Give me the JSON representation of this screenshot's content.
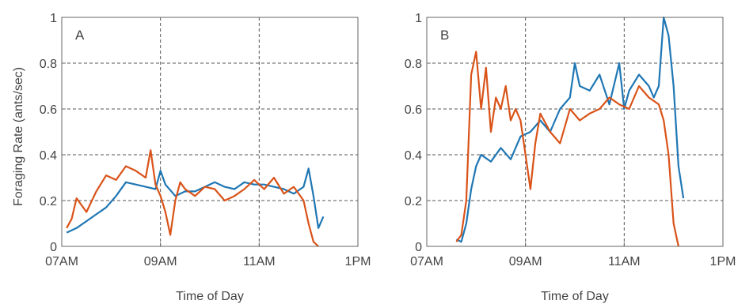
{
  "figure": {
    "ylabel": "Foraging Rate (ants/sec)"
  },
  "chart_data": [
    {
      "type": "line",
      "panel_label": "A",
      "xlabel": "Time of Day",
      "x_ticks": [
        "07AM",
        "09AM",
        "11AM",
        "1PM"
      ],
      "x_tick_values": [
        7,
        9,
        11,
        13
      ],
      "xlim": [
        7,
        13
      ],
      "y_ticks": [
        "0",
        "0.2",
        "0.4",
        "0.6",
        "0.8",
        "1"
      ],
      "y_tick_values": [
        0,
        0.2,
        0.4,
        0.6,
        0.8,
        1
      ],
      "ylim": [
        0,
        1
      ],
      "grid": true,
      "series": [
        {
          "color": "#1f77b4",
          "x": [
            7.1,
            7.3,
            7.5,
            7.7,
            7.9,
            8.1,
            8.3,
            8.5,
            8.7,
            8.9,
            9.0,
            9.1,
            9.3,
            9.5,
            9.7,
            9.9,
            10.1,
            10.3,
            10.5,
            10.7,
            10.9,
            11.1,
            11.3,
            11.5,
            11.7,
            11.9,
            12.0,
            12.1,
            12.2,
            12.3
          ],
          "values": [
            0.06,
            0.08,
            0.11,
            0.14,
            0.17,
            0.22,
            0.28,
            0.27,
            0.26,
            0.25,
            0.33,
            0.27,
            0.22,
            0.24,
            0.24,
            0.26,
            0.28,
            0.26,
            0.25,
            0.28,
            0.27,
            0.27,
            0.26,
            0.25,
            0.23,
            0.26,
            0.34,
            0.22,
            0.08,
            0.13
          ]
        },
        {
          "color": "#d95319",
          "x": [
            7.1,
            7.2,
            7.3,
            7.5,
            7.7,
            7.9,
            8.1,
            8.3,
            8.5,
            8.7,
            8.8,
            8.9,
            9.0,
            9.1,
            9.2,
            9.3,
            9.4,
            9.5,
            9.7,
            9.9,
            10.1,
            10.3,
            10.5,
            10.7,
            10.9,
            11.1,
            11.3,
            11.5,
            11.7,
            11.9,
            12.0,
            12.1,
            12.2
          ],
          "values": [
            0.08,
            0.12,
            0.21,
            0.15,
            0.24,
            0.31,
            0.29,
            0.35,
            0.33,
            0.3,
            0.42,
            0.27,
            0.22,
            0.15,
            0.05,
            0.2,
            0.28,
            0.25,
            0.22,
            0.26,
            0.25,
            0.2,
            0.22,
            0.25,
            0.29,
            0.25,
            0.3,
            0.23,
            0.26,
            0.2,
            0.1,
            0.02,
            0.0
          ]
        }
      ]
    },
    {
      "type": "line",
      "panel_label": "B",
      "xlabel": "Time of Day",
      "x_ticks": [
        "07AM",
        "09AM",
        "11AM",
        "1PM"
      ],
      "x_tick_values": [
        7,
        9,
        11,
        13
      ],
      "xlim": [
        7,
        13
      ],
      "y_ticks": [
        "0",
        "0.2",
        "0.4",
        "0.6",
        "0.8",
        "1"
      ],
      "y_tick_values": [
        0,
        0.2,
        0.4,
        0.6,
        0.8,
        1
      ],
      "ylim": [
        0,
        1
      ],
      "grid": true,
      "series": [
        {
          "color": "#1f77b4",
          "x": [
            7.6,
            7.7,
            7.8,
            7.9,
            8.0,
            8.1,
            8.3,
            8.5,
            8.7,
            8.9,
            9.1,
            9.3,
            9.5,
            9.7,
            9.9,
            10.0,
            10.1,
            10.3,
            10.5,
            10.7,
            10.9,
            11.0,
            11.1,
            11.3,
            11.5,
            11.6,
            11.7,
            11.8,
            11.9,
            12.0,
            12.1,
            12.2
          ],
          "values": [
            0.03,
            0.02,
            0.1,
            0.25,
            0.35,
            0.4,
            0.37,
            0.43,
            0.38,
            0.48,
            0.5,
            0.55,
            0.5,
            0.6,
            0.65,
            0.8,
            0.7,
            0.68,
            0.75,
            0.62,
            0.8,
            0.6,
            0.68,
            0.75,
            0.7,
            0.65,
            0.7,
            1.0,
            0.92,
            0.7,
            0.35,
            0.21
          ]
        },
        {
          "color": "#d95319",
          "x": [
            7.6,
            7.7,
            7.8,
            7.9,
            8.0,
            8.1,
            8.2,
            8.3,
            8.4,
            8.5,
            8.6,
            8.7,
            8.8,
            8.9,
            9.0,
            9.1,
            9.2,
            9.3,
            9.5,
            9.7,
            9.9,
            10.1,
            10.3,
            10.5,
            10.7,
            10.9,
            11.1,
            11.3,
            11.5,
            11.7,
            11.8,
            11.9,
            12.0,
            12.1
          ],
          "values": [
            0.02,
            0.05,
            0.2,
            0.75,
            0.85,
            0.6,
            0.78,
            0.5,
            0.65,
            0.6,
            0.7,
            0.55,
            0.6,
            0.55,
            0.4,
            0.25,
            0.45,
            0.58,
            0.5,
            0.45,
            0.6,
            0.55,
            0.58,
            0.6,
            0.65,
            0.62,
            0.6,
            0.7,
            0.65,
            0.62,
            0.55,
            0.4,
            0.1,
            0.0
          ]
        }
      ]
    }
  ]
}
